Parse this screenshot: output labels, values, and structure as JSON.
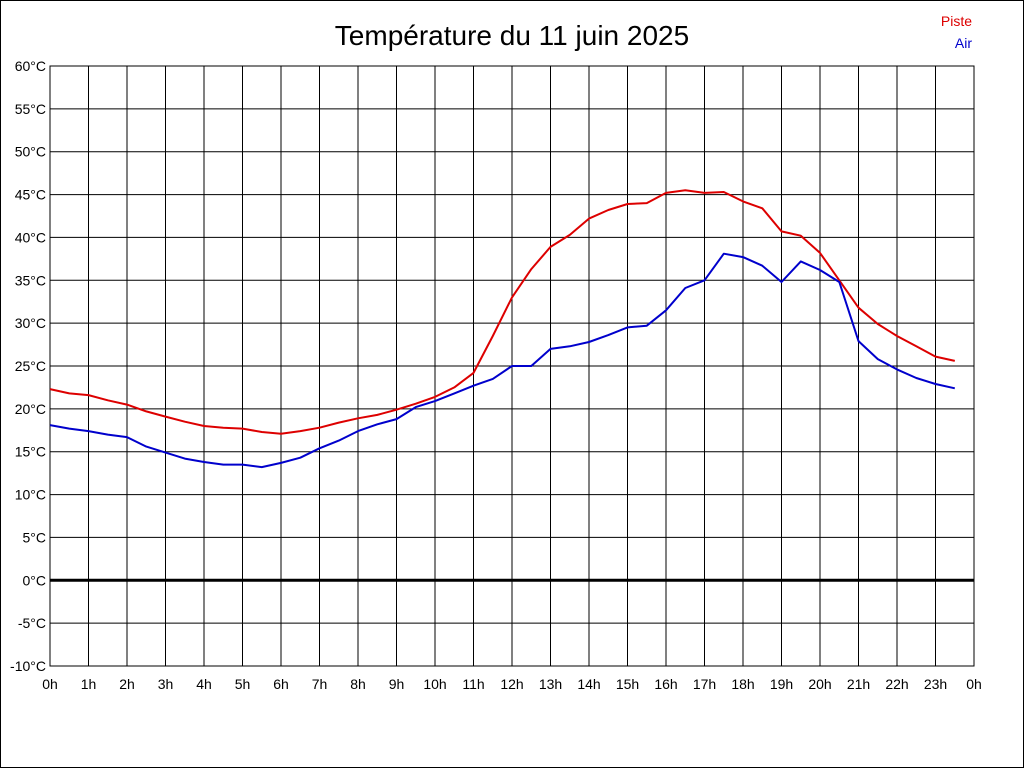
{
  "chart_data": {
    "type": "line",
    "title": "Température du 11 juin 2025",
    "xlabel": "",
    "ylabel": "",
    "x_ticks": [
      "0h",
      "1h",
      "2h",
      "3h",
      "4h",
      "5h",
      "6h",
      "7h",
      "8h",
      "9h",
      "10h",
      "11h",
      "12h",
      "13h",
      "14h",
      "15h",
      "16h",
      "17h",
      "18h",
      "19h",
      "20h",
      "21h",
      "22h",
      "23h",
      "0h"
    ],
    "y_ticks": [
      "60°C",
      "55°C",
      "50°C",
      "45°C",
      "40°C",
      "35°C",
      "30°C",
      "25°C",
      "20°C",
      "15°C",
      "10°C",
      "5°C",
      "0°C",
      "-5°C",
      "-10°C"
    ],
    "xlim": [
      0,
      24
    ],
    "ylim": [
      -10,
      60
    ],
    "grid": true,
    "legend_position": "top-right",
    "series": [
      {
        "name": "Piste",
        "color": "#dd0000",
        "x": [
          0,
          0.5,
          1,
          1.5,
          2,
          2.5,
          3,
          3.5,
          4,
          4.5,
          5,
          5.5,
          6,
          6.5,
          7,
          7.5,
          8,
          8.5,
          9,
          9.5,
          10,
          10.5,
          11,
          11.5,
          12,
          12.5,
          13,
          13.5,
          14,
          14.5,
          15,
          15.5,
          16,
          16.5,
          17,
          17.5,
          18,
          18.5,
          19,
          19.5,
          20,
          20.5,
          21,
          21.5,
          22,
          22.5,
          23,
          23.5
        ],
        "values": [
          22.3,
          21.8,
          21.6,
          21.0,
          20.5,
          19.7,
          19.1,
          18.5,
          18.0,
          17.8,
          17.7,
          17.3,
          17.1,
          17.4,
          17.8,
          18.4,
          18.9,
          19.3,
          19.9,
          20.6,
          21.4,
          22.5,
          24.2,
          28.5,
          33.0,
          36.3,
          38.9,
          40.3,
          42.2,
          43.2,
          43.9,
          44.0,
          45.2,
          45.5,
          45.2,
          45.3,
          44.2,
          43.4,
          40.7,
          40.2,
          38.2,
          35.0,
          31.8,
          29.9,
          28.5,
          27.3,
          26.1,
          25.6
        ]
      },
      {
        "name": "Air",
        "color": "#0000cc",
        "x": [
          0,
          0.5,
          1,
          1.5,
          2,
          2.5,
          3,
          3.5,
          4,
          4.5,
          5,
          5.5,
          6,
          6.5,
          7,
          7.5,
          8,
          8.5,
          9,
          9.5,
          10,
          10.5,
          11,
          11.5,
          12,
          12.5,
          13,
          13.5,
          14,
          14.5,
          15,
          15.5,
          16,
          16.5,
          17,
          17.5,
          18,
          18.5,
          19,
          19.5,
          20,
          20.5,
          21,
          21.5,
          22,
          22.5,
          23,
          23.5
        ],
        "values": [
          18.1,
          17.7,
          17.4,
          17.0,
          16.7,
          15.6,
          14.9,
          14.2,
          13.8,
          13.5,
          13.5,
          13.2,
          13.7,
          14.3,
          15.4,
          16.3,
          17.4,
          18.2,
          18.8,
          20.2,
          20.9,
          21.8,
          22.7,
          23.5,
          25.0,
          25.0,
          27.0,
          27.3,
          27.8,
          28.6,
          29.5,
          29.7,
          31.5,
          34.1,
          35.0,
          38.1,
          37.7,
          36.7,
          34.8,
          37.2,
          36.2,
          34.8,
          27.9,
          25.8,
          24.6,
          23.6,
          22.9,
          22.4
        ]
      }
    ]
  }
}
